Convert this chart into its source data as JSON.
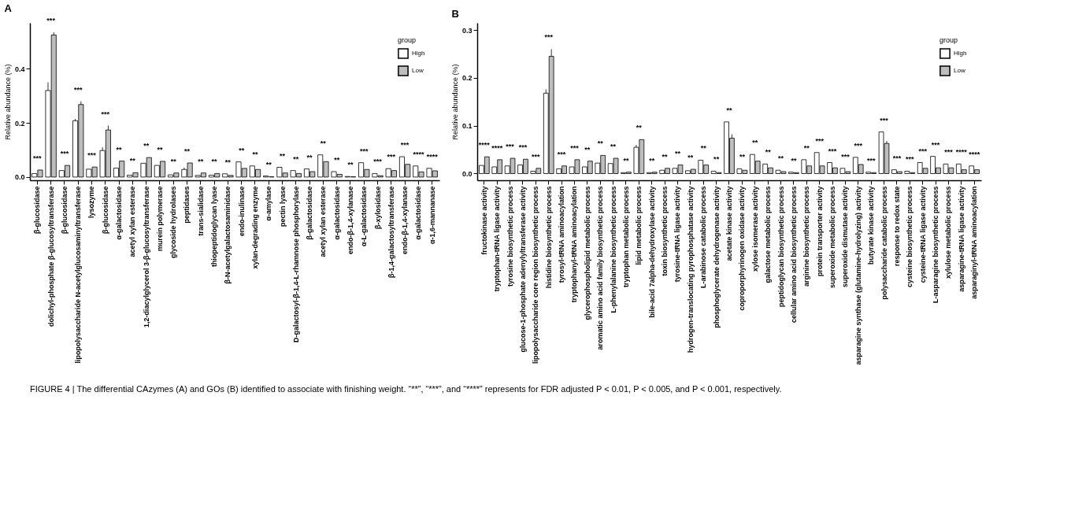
{
  "chart_data": [
    {
      "type": "bar",
      "title": "A",
      "ylabel": "Relative abundance (%)",
      "legend_title": "group",
      "legend": "top right",
      "grid": false,
      "categories": [
        "β-glucosidase",
        "dolichyl-phosphate β-glucosyltransferase",
        "β-glucosidase",
        "lipopolysaccharide N-acetylglucosaminyltransferase",
        "lysozyme",
        "β-glucosidase",
        "α-galactosidase",
        "acetyl xylan esterase",
        "1,2-diacylglycerol 3-β-glucosyltransferase",
        "murein polymerase",
        "glycoside hydrolases",
        "peptidases",
        "trans-sialidase",
        "thiopeptidoglycan lyase",
        "β-N-acetylgalactosaminidase",
        "endo-inulinase",
        "xylan-degrading enzyme",
        "α-amylase",
        "pectin lyase",
        "D-galactosyl-β-1,4-L-rhamnose phosphorylase",
        "β-galactosidase",
        "acetyl xylan esterase",
        "α-galactosidase",
        "endo-β-1,4-xylanase",
        "α-L-galactosidase",
        "β-xylosidase",
        "β-1,4-galactosyltransferase",
        "endo-β-1,4-xylanase",
        "α-galactosidase",
        "α-1,6-mannanase"
      ],
      "series": [
        {
          "name": "High",
          "color": "#ffffff",
          "values": [
            0.013,
            0.32,
            0.024,
            0.208,
            0.029,
            0.098,
            0.033,
            0.007,
            0.051,
            0.043,
            0.008,
            0.028,
            0.006,
            0.007,
            0.012,
            0.056,
            0.041,
            0.004,
            0.036,
            0.024,
            0.03,
            0.082,
            0.02,
            0.002,
            0.053,
            0.013,
            0.031,
            0.075,
            0.041,
            0.032
          ],
          "errors": [
            null,
            [
              0.32,
              0.35
            ],
            null,
            [
              0.208,
              0.215
            ],
            null,
            [
              0.098,
              0.11
            ],
            null,
            null,
            null,
            null,
            null,
            [
              0.028,
              0.035
            ],
            null,
            null,
            null,
            null,
            null,
            null,
            null,
            null,
            null,
            null,
            null,
            null,
            null,
            null,
            null,
            null,
            null,
            null
          ]
        },
        {
          "name": "Low",
          "color": "#bebebe",
          "values": [
            0.026,
            0.525,
            0.043,
            0.268,
            0.037,
            0.174,
            0.059,
            0.016,
            0.072,
            0.058,
            0.015,
            0.052,
            0.015,
            0.013,
            0.006,
            0.032,
            0.028,
            0.001,
            0.015,
            0.013,
            0.02,
            0.057,
            0.01,
            0.001,
            0.028,
            0.005,
            0.024,
            0.047,
            0.019,
            0.023
          ],
          "errors": [
            null,
            [
              0.525,
              0.535
            ],
            null,
            [
              0.268,
              0.28
            ],
            null,
            [
              0.174,
              0.19
            ],
            null,
            null,
            null,
            null,
            null,
            null,
            null,
            null,
            null,
            null,
            null,
            null,
            null,
            null,
            null,
            null,
            null,
            null,
            null,
            null,
            null,
            null,
            null,
            null
          ]
        }
      ],
      "ylim": [
        -0.012,
        0.57
      ],
      "yticks": [
        {
          "value": 0,
          "label": "0.0"
        },
        {
          "value": 0.2,
          "label": "0.2"
        },
        {
          "value": 0.4,
          "label": "0.4"
        }
      ],
      "annotations": [
        "***",
        "***",
        "***",
        "***",
        "***",
        "***",
        "**",
        "**",
        "**",
        "**",
        "**",
        "**",
        "**",
        "**",
        "**",
        "**",
        "**",
        "**",
        "**",
        "**",
        "**",
        "**",
        "**",
        "**",
        "***",
        "***",
        "***",
        "***",
        "****",
        "****"
      ]
    },
    {
      "type": "bar",
      "title": "B",
      "ylabel": "Relative abundance (%)",
      "legend_title": "group",
      "legend": "top right",
      "grid": false,
      "categories": [
        "fructokinase activity",
        "tryptophan-tRNA ligase activity",
        "tyrosine biosynthetic process",
        "glucose-1-phosphate adenylyltransferase activity",
        "lipopolysaccharide core region biosynthetic process",
        "histidine biosynthetic process",
        "tyrosyl-tRNA aminoacylation",
        "tryptophanyl-tRNA aminoacylation",
        "glycerophospholipid metabolic process",
        "aromatic amino acid family biosynthetic process",
        "L-phenylalanine biosynthetic process",
        "tryptophan metabolic process",
        "lipid metabolic process",
        "bile-acid 7alpha-dehydroxylase activity",
        "toxin biosynthetic process",
        "tyrosine-tRNA ligase activity",
        "hydrogen-translocating pyrophosphatase activity",
        "L-arabinose catabolic process",
        "phosphoglycerate dehydrogenase activity",
        "acetate kinase activity",
        "coproporphyrinogen oxidase activity",
        "xylose isomerase activity",
        "galactose metabolic process",
        "peptidoglycan biosynthetic process",
        "cellular amino acid biosynthetic process",
        "arginine biosynthetic process",
        "protein transporter activity",
        "superoxide metabolic process",
        "superoxide dismutase activity",
        "asparagine synthase (glutamine-hydrolyzing) activity",
        "butyrate kinase activity",
        "polysaccharide catabolic process",
        "response to redox state",
        "cysteine biosynthetic process",
        "cysteine-tRNA ligase activity",
        "L-asparagine biosynthetic process",
        "xylulose metabolic process",
        "asparagine-tRNA ligase activity",
        "asparaginyl-tRNA aminoacylation"
      ],
      "series": [
        {
          "name": "High",
          "color": "#ffffff",
          "values": [
            0.017,
            0.014,
            0.016,
            0.018,
            0.005,
            0.168,
            0.01,
            0.014,
            0.014,
            0.022,
            0.021,
            0.002,
            0.055,
            0.002,
            0.007,
            0.011,
            0.006,
            0.028,
            0.005,
            0.108,
            0.01,
            0.04,
            0.02,
            0.007,
            0.003,
            0.029,
            0.044,
            0.023,
            0.011,
            0.034,
            0.003,
            0.087,
            0.008,
            0.005,
            0.023,
            0.036,
            0.02,
            0.02,
            0.016
          ],
          "errors": [
            null,
            null,
            null,
            null,
            null,
            [
              0.168,
              0.176
            ],
            null,
            null,
            null,
            null,
            null,
            null,
            [
              0.055,
              0.06
            ],
            null,
            null,
            null,
            null,
            null,
            null,
            null,
            null,
            null,
            null,
            null,
            null,
            null,
            null,
            null,
            null,
            null,
            null,
            null,
            null,
            null,
            null,
            null,
            null,
            null,
            null
          ]
        },
        {
          "name": "Low",
          "color": "#bebebe",
          "values": [
            0.035,
            0.029,
            0.032,
            0.03,
            0.011,
            0.245,
            0.016,
            0.029,
            0.026,
            0.038,
            0.032,
            0.003,
            0.071,
            0.003,
            0.011,
            0.018,
            0.009,
            0.018,
            0.002,
            0.074,
            0.007,
            0.026,
            0.012,
            0.004,
            0.002,
            0.016,
            0.016,
            0.012,
            0.004,
            0.019,
            0.002,
            0.063,
            0.004,
            0.002,
            0.011,
            0.012,
            0.012,
            0.008,
            0.008
          ],
          "errors": [
            null,
            null,
            null,
            null,
            null,
            [
              0.245,
              0.26
            ],
            null,
            null,
            null,
            null,
            null,
            null,
            null,
            null,
            null,
            null,
            null,
            null,
            null,
            [
              0.074,
              0.082
            ],
            null,
            null,
            null,
            null,
            null,
            null,
            null,
            null,
            null,
            null,
            null,
            [
              0.063,
              0.068
            ],
            null,
            null,
            null,
            null,
            null,
            null,
            null
          ]
        }
      ],
      "ylim": [
        -0.014,
        0.315
      ],
      "yticks": [
        {
          "value": 0,
          "label": "0.0"
        },
        {
          "value": 0.1,
          "label": "0.1"
        },
        {
          "value": 0.2,
          "label": "0.2"
        },
        {
          "value": 0.3,
          "label": "0.3"
        }
      ],
      "annotations": [
        "****",
        "****",
        "***",
        "***",
        "***",
        "***",
        "***",
        "***",
        "**",
        "**",
        "**",
        "**",
        "**",
        "**",
        "**",
        "**",
        "**",
        "**",
        "**",
        "**",
        "**",
        "**",
        "**",
        "**",
        "**",
        "**",
        "***",
        "***",
        "***",
        "***",
        "***",
        "***",
        "***",
        "***",
        "***",
        "***",
        "***",
        "****",
        "****",
        "FIGURE 4 | The differential CAzymes (A) and GOs (B) identified to associate with finishing weight. “**”, “***”, and “****” represents for FDR adjusted P < 0.01, P < 0.005, and P < 0.001, respectively."
      ]
    }
  ]
}
